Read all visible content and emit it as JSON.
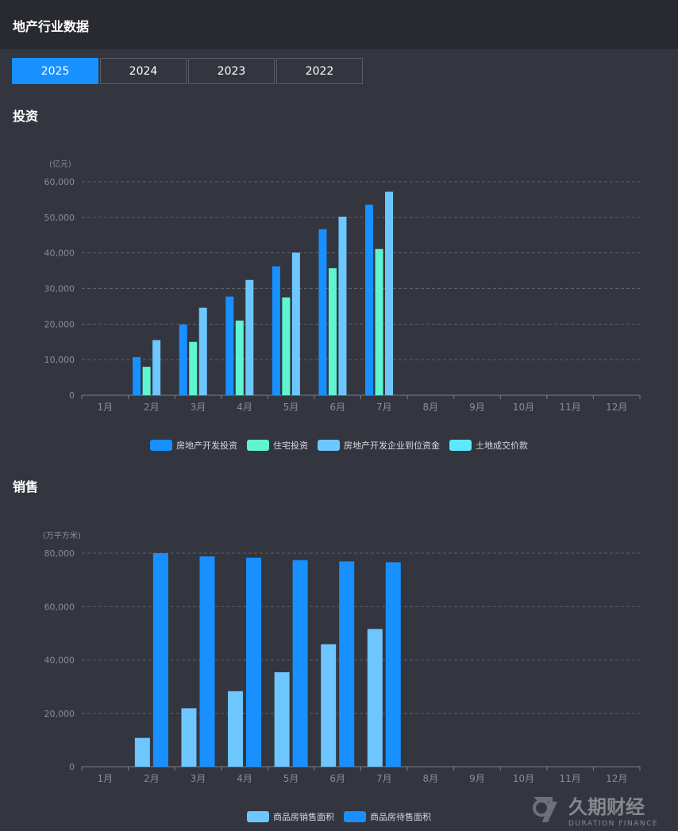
{
  "header": {
    "title": "地产行业数据"
  },
  "tabs": [
    {
      "label": "2025",
      "active": true
    },
    {
      "label": "2024",
      "active": false
    },
    {
      "label": "2023",
      "active": false
    },
    {
      "label": "2022",
      "active": false
    }
  ],
  "sections": {
    "investment_title": "投资",
    "sales_title": "销售"
  },
  "watermark": {
    "name": "久期财经",
    "sub": "DURATION FINANCE"
  },
  "chart_data": [
    {
      "type": "bar",
      "unit": "(亿元)",
      "categories": [
        "1月",
        "2月",
        "3月",
        "4月",
        "5月",
        "6月",
        "7月",
        "8月",
        "9月",
        "10月",
        "11月",
        "12月"
      ],
      "ylim": [
        0,
        60000
      ],
      "yticks": [
        0,
        10000,
        20000,
        30000,
        40000,
        50000,
        60000
      ],
      "ytick_labels": [
        "0",
        "10,000",
        "20,000",
        "30,000",
        "40,000",
        "50,000",
        "60,000"
      ],
      "grid": true,
      "legend_position": "bottom-center",
      "series": [
        {
          "name": "房地产开发投资",
          "color": "#1890ff",
          "values": [
            null,
            10720,
            19904,
            27730,
            36234,
            46658,
            53580,
            null,
            null,
            null,
            null,
            null
          ]
        },
        {
          "name": "住宅投资",
          "color": "#5ef5d0",
          "values": [
            null,
            8000,
            15000,
            21000,
            27500,
            35700,
            41100,
            null,
            null,
            null,
            null,
            null
          ]
        },
        {
          "name": "房地产开发企业到位资金",
          "color": "#6ec6ff",
          "values": [
            null,
            15500,
            24600,
            32400,
            40100,
            50200,
            57200,
            null,
            null,
            null,
            null,
            null
          ]
        },
        {
          "name": "土地成交价款",
          "color": "#5ce8ff",
          "values": [
            null,
            null,
            null,
            null,
            null,
            null,
            null,
            null,
            null,
            null,
            null,
            null
          ]
        }
      ]
    },
    {
      "type": "bar",
      "unit": "(万平方米)",
      "categories": [
        "1月",
        "2月",
        "3月",
        "4月",
        "5月",
        "6月",
        "7月",
        "8月",
        "9月",
        "10月",
        "11月",
        "12月"
      ],
      "ylim": [
        0,
        80000
      ],
      "yticks": [
        0,
        20000,
        40000,
        60000,
        80000
      ],
      "ytick_labels": [
        "0",
        "20,000",
        "40,000",
        "60,000",
        "80,000"
      ],
      "grid": true,
      "legend_position": "bottom-center",
      "series": [
        {
          "name": "商品房销售面积",
          "color": "#6ec6ff",
          "values": [
            null,
            10800,
            21900,
            28300,
            35400,
            45900,
            51600,
            null,
            null,
            null,
            null,
            null
          ]
        },
        {
          "name": "商品房待售面积",
          "color": "#1890ff",
          "values": [
            null,
            80000,
            78800,
            78300,
            77400,
            76900,
            76600,
            null,
            null,
            null,
            null,
            null
          ]
        }
      ]
    }
  ]
}
